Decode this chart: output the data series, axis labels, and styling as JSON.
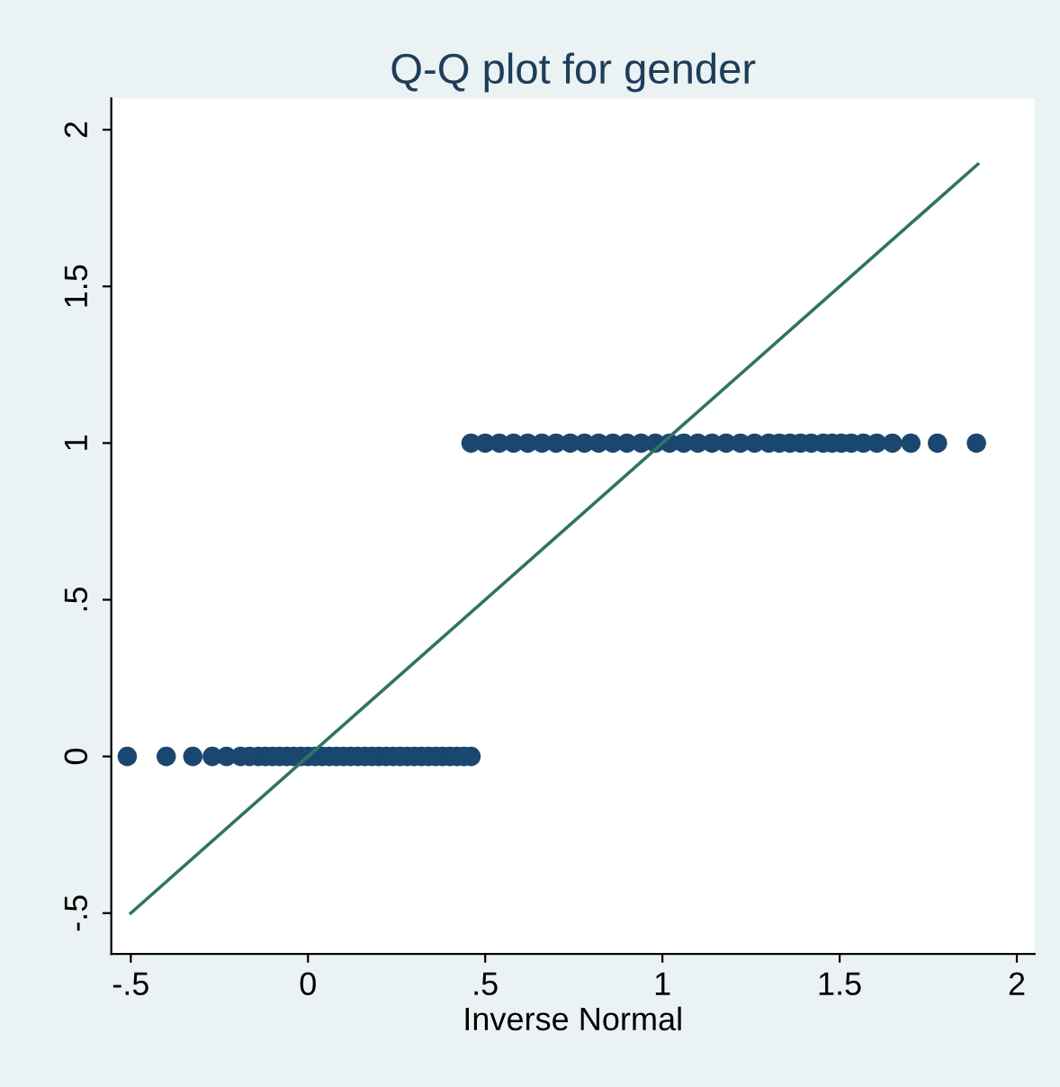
{
  "chart_data": {
    "type": "scatter",
    "title": "Q-Q plot for gender",
    "xlabel": "Inverse Normal",
    "xlim": [
      -0.555,
      2.05
    ],
    "ylim": [
      -0.63,
      2.1
    ],
    "xticks": [
      {
        "value": -0.5,
        "label": "-.5"
      },
      0,
      {
        "value": 0.5,
        "label": ".5"
      },
      1,
      1.5,
      2
    ],
    "yticks": [
      {
        "value": -0.5,
        "label": "-.5"
      },
      0,
      {
        "value": 0.5,
        "label": ".5"
      },
      1,
      1.5,
      2
    ],
    "grid": false,
    "legend": false,
    "marker": "circle",
    "series": [
      {
        "color": "#1a476f",
        "x": [
          -0.51,
          -0.4,
          -0.325,
          -0.27,
          -0.23,
          -0.19,
          -0.165,
          -0.14,
          -0.12,
          -0.1,
          -0.08,
          -0.06,
          -0.04,
          -0.02,
          0,
          0.02,
          0.04,
          0.06,
          0.08,
          0.1,
          0.12,
          0.14,
          0.16,
          0.18,
          0.2,
          0.22,
          0.24,
          0.26,
          0.28,
          0.3,
          0.32,
          0.34,
          0.36,
          0.38,
          0.4,
          0.42,
          0.44,
          0.46
        ],
        "values": [
          0,
          0,
          0,
          0,
          0,
          0,
          0,
          0,
          0,
          0,
          0,
          0,
          0,
          0,
          0,
          0,
          0,
          0,
          0,
          0,
          0,
          0,
          0,
          0,
          0,
          0,
          0,
          0,
          0,
          0,
          0,
          0,
          0,
          0,
          0,
          0,
          0,
          0
        ]
      },
      {
        "color": "#1a476f",
        "x": [
          0.46,
          0.5,
          0.54,
          0.58,
          0.62,
          0.66,
          0.7,
          0.74,
          0.78,
          0.82,
          0.86,
          0.9,
          0.94,
          0.98,
          1.02,
          1.06,
          1.1,
          1.14,
          1.18,
          1.22,
          1.26,
          1.3,
          1.33,
          1.36,
          1.39,
          1.42,
          1.454,
          1.479,
          1.505,
          1.533,
          1.567,
          1.605,
          1.649,
          1.701,
          1.776,
          1.886
        ],
        "values": [
          1,
          1,
          1,
          1,
          1,
          1,
          1,
          1,
          1,
          1,
          1,
          1,
          1,
          1,
          1,
          1,
          1,
          1,
          1,
          1,
          1,
          1,
          1,
          1,
          1,
          1,
          1,
          1,
          1,
          1,
          1,
          1,
          1,
          1,
          1,
          1
        ]
      },
      {
        "type": "line",
        "color": "#2e7561",
        "marker": "none",
        "line_style": "solid",
        "x": [
          -0.5,
          1.89
        ],
        "values": [
          -0.5,
          1.89
        ]
      }
    ]
  }
}
